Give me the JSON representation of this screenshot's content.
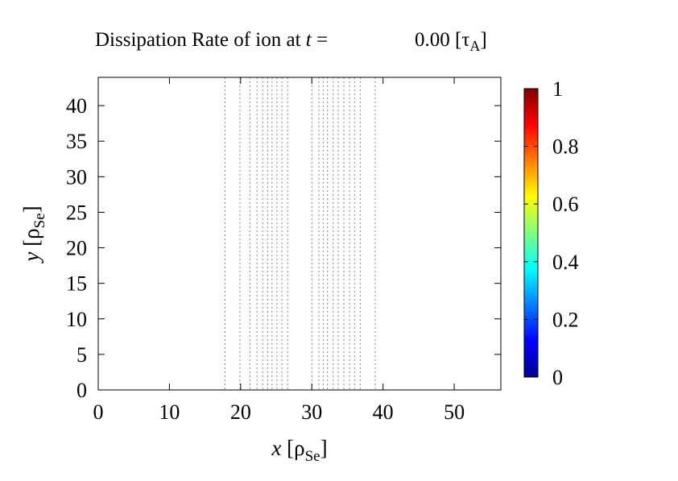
{
  "chart_data": {
    "type": "heatmap",
    "title": {
      "prefix": "Dissipation Rate of ion at ",
      "var": "t",
      "eq": " =",
      "value": "0.00",
      "unit_open": "[τ",
      "unit_sub": "A",
      "unit_close": "]"
    },
    "xlabel": {
      "var": "x",
      "open": " [ρ",
      "sub": "Se",
      "close": "]"
    },
    "ylabel": {
      "var": "y",
      "open": " [ρ",
      "sub": "Se",
      "close": "]"
    },
    "xlim": [
      0,
      56.55
    ],
    "ylim": [
      0,
      43.98
    ],
    "xticks": [
      0,
      10,
      20,
      30,
      40,
      50
    ],
    "yticks": [
      0,
      5,
      10,
      15,
      20,
      25,
      30,
      35,
      40
    ],
    "colorbar": {
      "range": [
        0,
        1
      ],
      "ticks": [
        "0",
        "0.2",
        "0.4",
        "0.6",
        "0.8",
        "1"
      ],
      "colormap": "jet"
    },
    "field_value": 0,
    "contour_x": [
      17.8,
      19.9,
      21.3,
      22.3,
      23.1,
      23.8,
      24.4,
      25.1,
      25.8,
      26.6,
      30.0,
      31.0,
      31.6,
      32.2,
      33.0,
      33.7,
      34.5,
      35.3,
      36.0,
      36.8,
      38.9
    ],
    "contour_color": "#888888"
  }
}
